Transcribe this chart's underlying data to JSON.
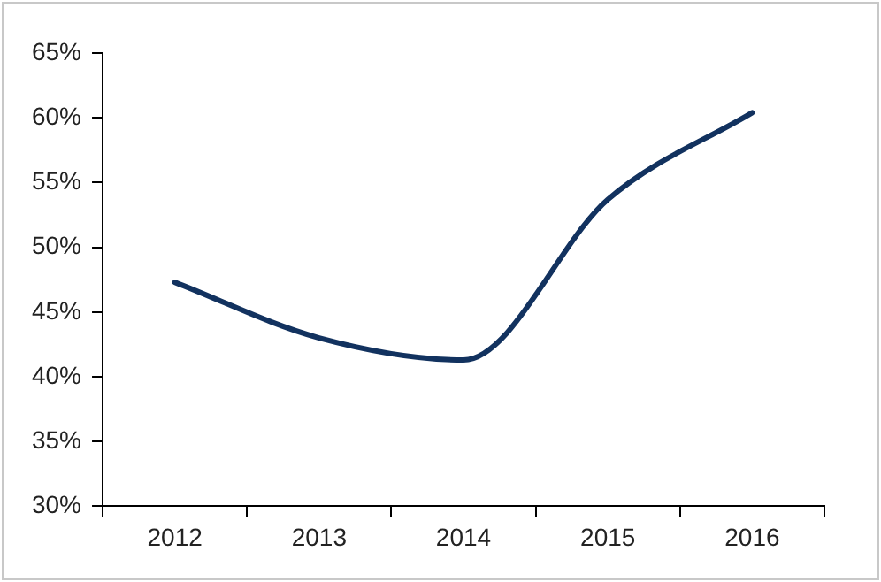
{
  "chart_data": {
    "type": "line",
    "categories": [
      "2012",
      "2013",
      "2014",
      "2015",
      "2016"
    ],
    "series": [
      {
        "color": "#12325f",
        "values": [
          47.3,
          43.0,
          41.3,
          53.7,
          60.4
        ]
      }
    ],
    "ylim": [
      30,
      65
    ],
    "yticks": [
      {
        "value": 30,
        "label": "30%"
      },
      {
        "value": 35,
        "label": "35%"
      },
      {
        "value": 40,
        "label": "40%"
      },
      {
        "value": 45,
        "label": "45%"
      },
      {
        "value": 50,
        "label": "50%"
      },
      {
        "value": 55,
        "label": "55%"
      },
      {
        "value": 60,
        "label": "60%"
      },
      {
        "value": 65,
        "label": "65%"
      }
    ],
    "grid": false,
    "legend": false,
    "marker": "none",
    "line_style": "solid"
  }
}
